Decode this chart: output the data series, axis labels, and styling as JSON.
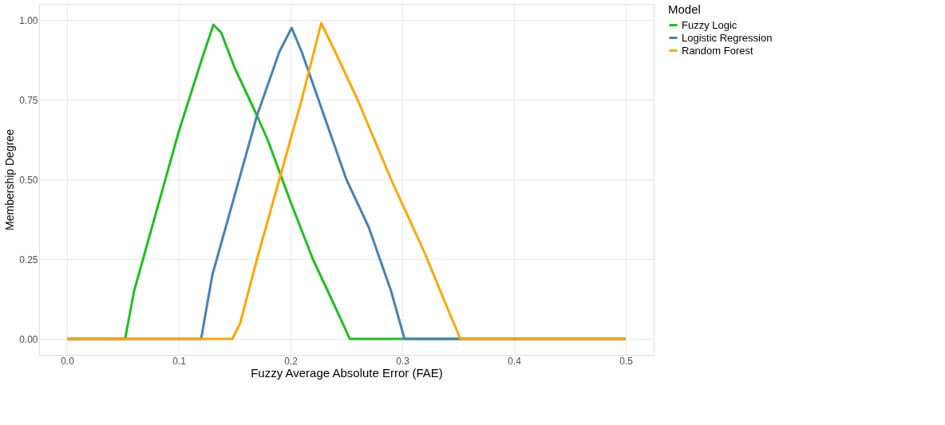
{
  "chart_data": {
    "type": "line",
    "xlabel": "Fuzzy Average Absolute Error (FAE)",
    "ylabel": "Membership Degree",
    "legend_title": "Model",
    "legend": "right",
    "grid": true,
    "marker": "none",
    "line_style": "solid",
    "xlim": [
      -0.025,
      0.525
    ],
    "ylim": [
      -0.05,
      1.05
    ],
    "xticks": [
      {
        "value": 0,
        "label": "0.0"
      },
      {
        "value": 0.1,
        "label": "0.1"
      },
      {
        "value": 0.2,
        "label": "0.2"
      },
      {
        "value": 0.3,
        "label": "0.3"
      },
      {
        "value": 0.4,
        "label": "0.4"
      },
      {
        "value": 0.5,
        "label": "0.5"
      }
    ],
    "yticks": [
      {
        "value": 0,
        "label": "0.00"
      },
      {
        "value": 0.25,
        "label": "0.25"
      },
      {
        "value": 0.5,
        "label": "0.50"
      },
      {
        "value": 0.75,
        "label": "0.75"
      },
      {
        "value": 1,
        "label": "1.00"
      }
    ],
    "series": [
      {
        "name": "Fuzzy Logic",
        "color": "#1fbf1f",
        "x": [
          0,
          0.052,
          0.06,
          0.08,
          0.1,
          0.12,
          0.131,
          0.138,
          0.15,
          0.17,
          0.18,
          0.2,
          0.22,
          0.24,
          0.253,
          0.5
        ],
        "values": [
          0,
          0,
          0.15,
          0.4,
          0.65,
          0.87,
          0.985,
          0.96,
          0.85,
          0.7,
          0.62,
          0.43,
          0.25,
          0.1,
          0,
          0
        ]
      },
      {
        "name": "Logistic Regression",
        "color": "#4682b4",
        "x": [
          0,
          0.12,
          0.13,
          0.15,
          0.17,
          0.19,
          0.201,
          0.21,
          0.23,
          0.25,
          0.27,
          0.29,
          0.302,
          0.5
        ],
        "values": [
          0,
          0,
          0.2,
          0.45,
          0.7,
          0.9,
          0.975,
          0.9,
          0.7,
          0.5,
          0.35,
          0.15,
          0,
          0
        ]
      },
      {
        "name": "Random Forest",
        "color": "#ffa500",
        "x": [
          0,
          0.148,
          0.155,
          0.17,
          0.19,
          0.21,
          0.2275,
          0.24,
          0.26,
          0.29,
          0.32,
          0.34,
          0.352,
          0.5
        ],
        "values": [
          0,
          0,
          0.05,
          0.25,
          0.5,
          0.75,
          0.99,
          0.9,
          0.75,
          0.5,
          0.27,
          0.1,
          0,
          0
        ]
      }
    ]
  }
}
